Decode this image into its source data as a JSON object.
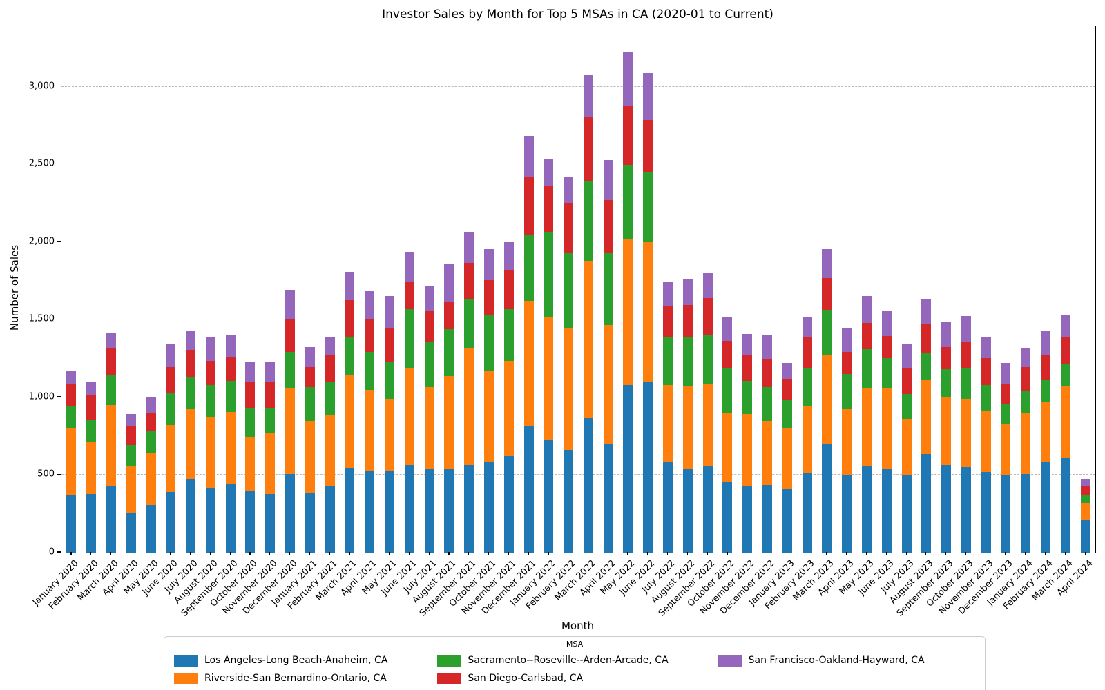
{
  "chart_data": {
    "type": "bar",
    "stacked": true,
    "title": "Investor Sales by Month for Top 5 MSAs in CA (2020-01 to Current)",
    "xlabel": "Month",
    "ylabel": "Number of Sales",
    "legend_title": "MSA",
    "legend_position": "bottom-center",
    "grid": "horizontal-dashed",
    "ylim": [
      0,
      3390
    ],
    "yticks": {
      "values": [
        0,
        500,
        1000,
        1500,
        2000,
        2500,
        3000
      ],
      "labels": [
        "0",
        "500",
        "1,000",
        "1,500",
        "2,000",
        "2,500",
        "3,000"
      ]
    },
    "categories": [
      "January 2020",
      "February 2020",
      "March 2020",
      "April 2020",
      "May 2020",
      "June 2020",
      "July 2020",
      "August 2020",
      "September 2020",
      "October 2020",
      "November 2020",
      "December 2020",
      "January 2021",
      "February 2021",
      "March 2021",
      "April 2021",
      "May 2021",
      "June 2021",
      "July 2021",
      "August 2021",
      "September 2021",
      "October 2021",
      "November 2021",
      "December 2021",
      "January 2022",
      "February 2022",
      "March 2022",
      "April 2022",
      "May 2022",
      "June 2022",
      "July 2022",
      "August 2022",
      "September 2022",
      "October 2022",
      "November 2022",
      "December 2022",
      "January 2023",
      "February 2023",
      "March 2023",
      "April 2023",
      "May 2023",
      "June 2023",
      "July 2023",
      "August 2023",
      "September 2023",
      "October 2023",
      "November 2023",
      "December 2023",
      "January 2024",
      "February 2024",
      "March 2024",
      "April 2024"
    ],
    "series": [
      {
        "name": "Los Angeles-Long Beach-Anaheim, CA",
        "color": "#1f77b4",
        "values": [
          375,
          378,
          433,
          252,
          307,
          392,
          477,
          418,
          440,
          395,
          376,
          507,
          388,
          430,
          548,
          530,
          526,
          563,
          536,
          540,
          566,
          585,
          620,
          812,
          728,
          661,
          865,
          697,
          1081,
          1100,
          586,
          541,
          560,
          452,
          427,
          437,
          415,
          511,
          704,
          496,
          558,
          541,
          504,
          634,
          566,
          551,
          521,
          496,
          508,
          581,
          607,
          207
        ]
      },
      {
        "name": "Riverside-San Bernardino-Ontario, CA",
        "color": "#ff7f0e",
        "values": [
          425,
          337,
          517,
          303,
          333,
          428,
          448,
          457,
          465,
          353,
          394,
          555,
          462,
          460,
          592,
          517,
          464,
          629,
          531,
          598,
          752,
          588,
          617,
          808,
          792,
          785,
          1013,
          770,
          939,
          905,
          494,
          533,
          524,
          452,
          465,
          410,
          388,
          434,
          573,
          430,
          502,
          519,
          358,
          482,
          438,
          439,
          390,
          337,
          388,
          394,
          463,
          111
        ]
      },
      {
        "name": "Sacramento--Roseville--Arden-Arcade, CA",
        "color": "#2ca02c",
        "values": [
          145,
          140,
          195,
          140,
          140,
          210,
          205,
          205,
          200,
          187,
          165,
          233,
          215,
          210,
          253,
          248,
          242,
          378,
          293,
          302,
          314,
          357,
          330,
          426,
          545,
          489,
          514,
          463,
          478,
          445,
          310,
          319,
          316,
          286,
          216,
          220,
          177,
          245,
          289,
          226,
          251,
          192,
          158,
          170,
          178,
          195,
          170,
          122,
          148,
          136,
          142,
          55
        ]
      },
      {
        "name": "San Diego-Carlsbad, CA",
        "color": "#d62728",
        "values": [
          145,
          160,
          170,
          120,
          120,
          165,
          175,
          157,
          155,
          165,
          165,
          205,
          132,
          170,
          232,
          212,
          213,
          174,
          195,
          175,
          235,
          226,
          253,
          372,
          295,
          317,
          416,
          340,
          377,
          335,
          195,
          204,
          241,
          176,
          163,
          182,
          140,
          200,
          204,
          140,
          169,
          143,
          170,
          188,
          144,
          175,
          174,
          134,
          153,
          166,
          181,
          60
        ]
      },
      {
        "name": "San Francisco-Oakland-Hayward, CA",
        "color": "#9467bd",
        "values": [
          80,
          85,
          100,
          80,
          100,
          150,
          127,
          153,
          145,
          132,
          127,
          190,
          129,
          123,
          182,
          178,
          207,
          194,
          165,
          245,
          197,
          200,
          180,
          267,
          175,
          166,
          272,
          260,
          345,
          305,
          161,
          166,
          159,
          152,
          136,
          154,
          102,
          124,
          185,
          158,
          172,
          165,
          150,
          163,
          163,
          166,
          130,
          133,
          124,
          153,
          140,
          44
        ]
      }
    ]
  }
}
